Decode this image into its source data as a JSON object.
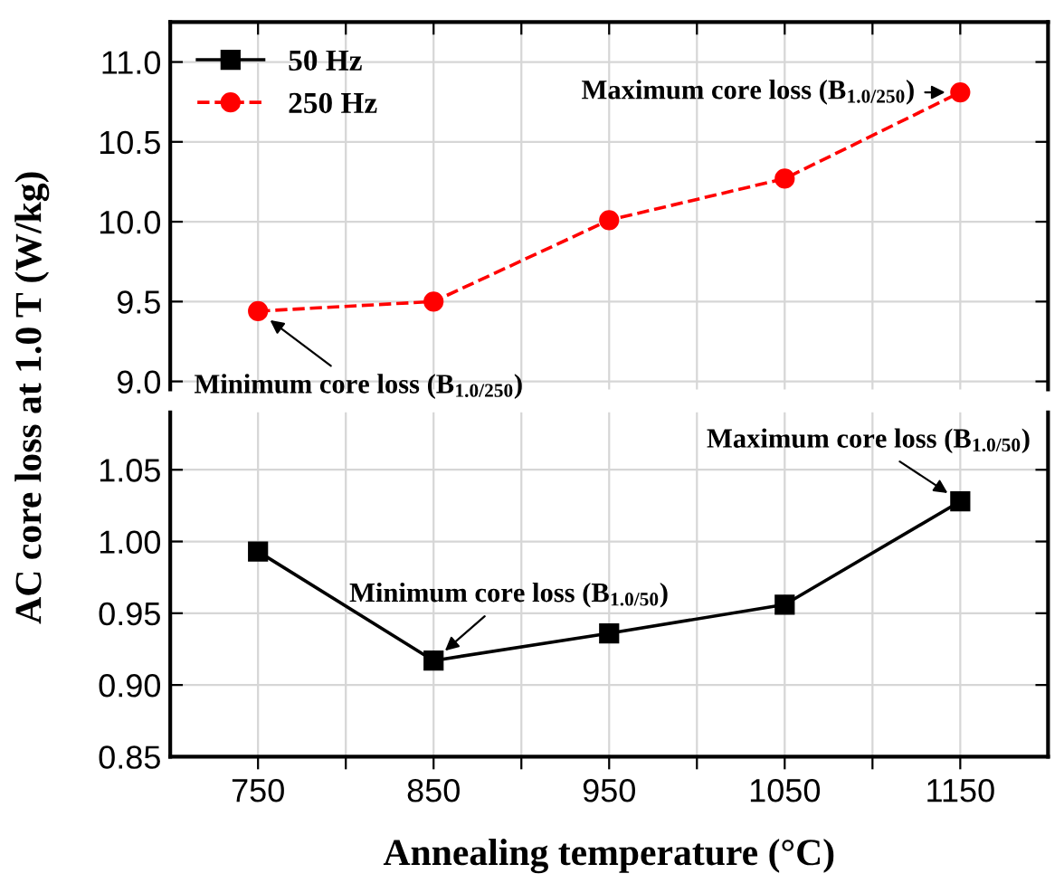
{
  "chart_data": [
    {
      "type": "line",
      "x": [
        750,
        850,
        950,
        1050,
        1150
      ],
      "ylabel": "AC core loss at 1.0 T (W/kg)",
      "series": [
        {
          "name": "250 Hz",
          "color": "#ff0000",
          "values": [
            9.44,
            9.5,
            10.01,
            10.27,
            10.81
          ],
          "marker": "circle",
          "line_style": "dashed"
        }
      ],
      "xlim": [
        700,
        1200
      ],
      "xticks": [
        {
          "value": 750,
          "label": null
        },
        {
          "value": 800,
          "label": null
        },
        {
          "value": 850,
          "label": null
        },
        {
          "value": 900,
          "label": null
        },
        {
          "value": 950,
          "label": null
        },
        {
          "value": 1000,
          "label": null
        },
        {
          "value": 1050,
          "label": null
        },
        {
          "value": 1100,
          "label": null
        },
        {
          "value": 1150,
          "label": null
        }
      ],
      "ylim": [
        8.95,
        11.25
      ],
      "yticks": [
        {
          "value": 9.0,
          "label": "9.0"
        },
        {
          "value": 9.5,
          "label": "9.5"
        },
        {
          "value": 10.0,
          "label": "10.0"
        },
        {
          "value": 10.5,
          "label": "10.5"
        },
        {
          "value": 11.0,
          "label": "11.0"
        }
      ],
      "tick_labels": "y",
      "grid": true,
      "legend": "top left",
      "annotations": [
        {
          "text": "Maximum core loss (B$_{1.0/250}$)",
          "x": 1150,
          "y": 10.81
        },
        {
          "text": "Minimum core loss (B$_{1.0/250}$)",
          "x": 750,
          "y": 9.44
        }
      ]
    },
    {
      "type": "line",
      "x": [
        750,
        850,
        950,
        1050,
        1150
      ],
      "xlabel": "Annealing temperature (°C)",
      "series": [
        {
          "name": "50 Hz",
          "color": "#000000",
          "values": [
            0.993,
            0.917,
            0.936,
            0.956,
            1.028
          ],
          "marker": "square",
          "line_style": "solid"
        }
      ],
      "xlim": [
        700,
        1200
      ],
      "xticks": [
        {
          "value": 750,
          "label": "750"
        },
        {
          "value": 800,
          "label": null
        },
        {
          "value": 850,
          "label": "850"
        },
        {
          "value": 900,
          "label": null
        },
        {
          "value": 950,
          "label": "950"
        },
        {
          "value": 1000,
          "label": null
        },
        {
          "value": 1050,
          "label": "1050"
        },
        {
          "value": 1100,
          "label": null
        },
        {
          "value": 1150,
          "label": "1150"
        }
      ],
      "ylim": [
        0.85,
        1.09
      ],
      "yticks": [
        {
          "value": 0.85,
          "label": "0.85"
        },
        {
          "value": 0.9,
          "label": "0.90"
        },
        {
          "value": 0.95,
          "label": "0.95"
        },
        {
          "value": 1.0,
          "label": "1.00"
        },
        {
          "value": 1.05,
          "label": "1.05"
        }
      ],
      "grid": true,
      "annotations": [
        {
          "text": "Minimum core loss (B$_{1.0/50}$)",
          "x": 850,
          "y": 0.917
        },
        {
          "text": "Maximum core loss (B$_{1.0/50}$)",
          "x": 1150,
          "y": 1.028
        }
      ]
    }
  ]
}
